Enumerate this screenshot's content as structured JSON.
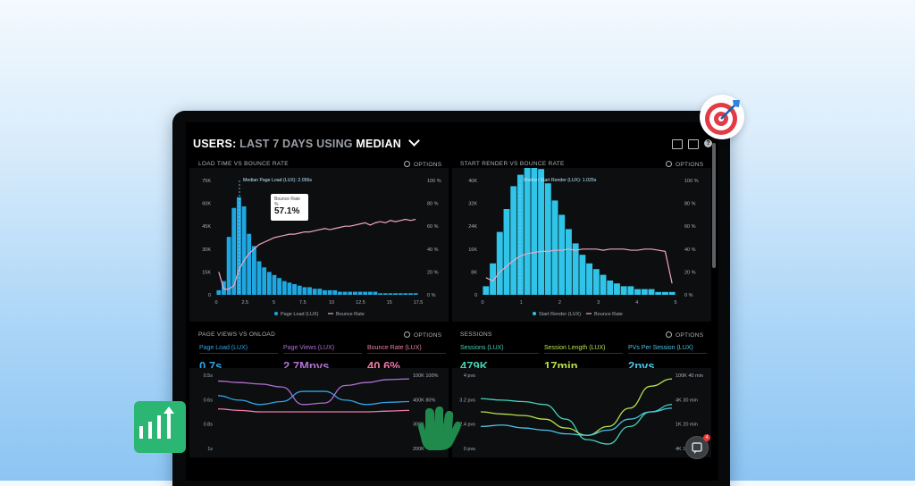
{
  "header": {
    "prefix": "USERS:",
    "range": "LAST 7 DAYS",
    "using": "USING",
    "stat": "MEDIAN"
  },
  "panels": {
    "load_time": {
      "title": "LOAD TIME VS BOUNCE RATE",
      "options": "OPTIONS",
      "marker_label": "Median Page Load (LUX): 2.056s",
      "tooltip_label": "Bounce Rate",
      "tooltip_sub": "%",
      "tooltip_value": "57.1%",
      "legend": [
        "Page Load (LUX)",
        "Bounce Rate"
      ]
    },
    "start_render": {
      "title": "START RENDER VS BOUNCE RATE",
      "options": "OPTIONS",
      "marker_label": "Median Start Render (LUX): 1.025s",
      "legend": [
        "Start Render (LUX)",
        "Bounce Rate"
      ]
    },
    "page_views": {
      "title": "PAGE VIEWS VS ONLOAD",
      "options": "OPTIONS",
      "metrics": [
        {
          "label": "Page Load (LUX)",
          "value": "0.7s",
          "color": "#2fa3e6"
        },
        {
          "label": "Page Views (LUX)",
          "value": "2.7Mpvs",
          "color": "#b06fd0"
        },
        {
          "label": "Bounce Rate (LUX)",
          "value": "40.6%",
          "color": "#f07aa8"
        }
      ]
    },
    "sessions": {
      "title": "SESSIONS",
      "options": "OPTIONS",
      "metrics": [
        {
          "label": "Sessions (LUX)",
          "value": "479K",
          "color": "#43d1b4"
        },
        {
          "label": "Session Length (LUX)",
          "value": "17min",
          "color": "#b7e04a"
        },
        {
          "label": "PVs Per Session (LUX)",
          "value": "2pvs",
          "color": "#49c4e8"
        }
      ]
    }
  },
  "chart_data": [
    {
      "type": "bar",
      "title": "LOAD TIME VS BOUNCE RATE",
      "x_ticks": [
        "0",
        "2.5",
        "5",
        "7.5",
        "10",
        "12.5",
        "15",
        "17.5"
      ],
      "y_left_ticks": [
        "0",
        "15K",
        "30K",
        "45K",
        "60K",
        "75K"
      ],
      "y_right_ticks": [
        "0 %",
        "20 %",
        "40 %",
        "60 %",
        "80 %",
        "100 %"
      ],
      "bars": [
        3,
        9,
        38,
        57,
        64,
        58,
        40,
        32,
        22,
        18,
        15,
        13,
        11,
        9,
        8,
        7,
        6,
        5,
        5,
        4,
        4,
        3,
        3,
        3,
        2,
        2,
        2,
        2,
        2,
        2,
        2,
        2,
        1,
        1,
        1,
        1,
        1,
        1,
        1,
        1
      ],
      "line_pct": [
        20,
        5,
        5,
        8,
        22,
        30,
        36,
        40,
        44,
        46,
        48,
        50,
        51,
        52,
        53,
        53,
        54,
        55,
        55,
        56,
        57,
        58,
        57,
        58,
        59,
        60,
        60,
        61,
        62,
        63,
        61,
        63,
        64,
        63,
        65,
        64,
        65,
        66,
        65,
        66
      ],
      "series": [
        {
          "name": "Page Load (LUX)"
        },
        {
          "name": "Bounce Rate"
        }
      ]
    },
    {
      "type": "bar",
      "title": "START RENDER VS BOUNCE RATE",
      "x_ticks": [
        "0",
        "1",
        "2",
        "3",
        "4",
        "5"
      ],
      "y_left_ticks": [
        "0",
        "8K",
        "16K",
        "24K",
        "32K",
        "40K"
      ],
      "y_right_ticks": [
        "0 %",
        "20 %",
        "40 %",
        "60 %",
        "80 %",
        "100 %"
      ],
      "bars": [
        3,
        11,
        22,
        30,
        38,
        42,
        48,
        52,
        44,
        39,
        33,
        28,
        23,
        18,
        14,
        11,
        9,
        7,
        5,
        4,
        3,
        3,
        2,
        2,
        2,
        1,
        1,
        1
      ],
      "line_pct": [
        15,
        12,
        20,
        25,
        30,
        34,
        36,
        37,
        38,
        38,
        39,
        39,
        40,
        39,
        40,
        40,
        40,
        39,
        40,
        40,
        40,
        39,
        39,
        40,
        40,
        39,
        38,
        10
      ],
      "series": [
        {
          "name": "Start Render (LUX)"
        },
        {
          "name": "Bounce Rate"
        }
      ]
    },
    {
      "type": "line",
      "title": "PAGE VIEWS VS ONLOAD",
      "y_left_ticks": [
        "0.5s",
        "0.6s",
        "0.8s",
        "1s"
      ],
      "y_right_ticks": [
        "100K 100%",
        "400K 80%",
        "300K",
        "200K"
      ],
      "series": [
        {
          "name": "Page Load (LUX)",
          "values": [
            0.72,
            0.66,
            0.6,
            0.64,
            0.78,
            0.78,
            0.66,
            0.6,
            0.63,
            0.64
          ]
        },
        {
          "name": "Page Views (LUX)",
          "values": [
            0.92,
            0.9,
            0.88,
            0.84,
            0.6,
            0.62,
            0.86,
            0.9,
            0.94,
            0.95
          ]
        },
        {
          "name": "Bounce Rate (LUX)",
          "values": [
            0.54,
            0.52,
            0.5,
            0.5,
            0.5,
            0.5,
            0.5,
            0.5,
            0.51,
            0.52
          ]
        }
      ]
    },
    {
      "type": "line",
      "title": "SESSIONS",
      "y_left_ticks": [
        "4 pvs",
        "3.2 pvs",
        "2.4 pvs",
        "0 pvs"
      ],
      "y_right_ticks": [
        "100K 40 min",
        "4K 30 min",
        "1K 20 min",
        "4K 10 min"
      ],
      "series": [
        {
          "name": "Sessions (LUX)",
          "values": [
            0.68,
            0.66,
            0.64,
            0.6,
            0.4,
            0.12,
            0.06,
            0.3,
            0.5,
            0.6
          ]
        },
        {
          "name": "Session Length (LUX)",
          "values": [
            0.5,
            0.47,
            0.45,
            0.4,
            0.28,
            0.18,
            0.3,
            0.55,
            0.85,
            0.95
          ]
        },
        {
          "name": "PVs Per Session (LUX)",
          "values": [
            0.3,
            0.32,
            0.28,
            0.25,
            0.2,
            0.18,
            0.25,
            0.4,
            0.5,
            0.55
          ]
        }
      ]
    }
  ],
  "colors": {
    "bar": "#1fa7e1",
    "bar_cyan": "#2fc4e8",
    "line_pink": "#f0a7c0",
    "accent_green": "#2bb673",
    "target_red": "#e23b45"
  },
  "icons": [
    "monitor-icon",
    "image-icon",
    "help-icon",
    "chart-growth-icon",
    "target-icon",
    "chat-icon",
    "hand-pointer-icon"
  ],
  "chat_badge": "4"
}
